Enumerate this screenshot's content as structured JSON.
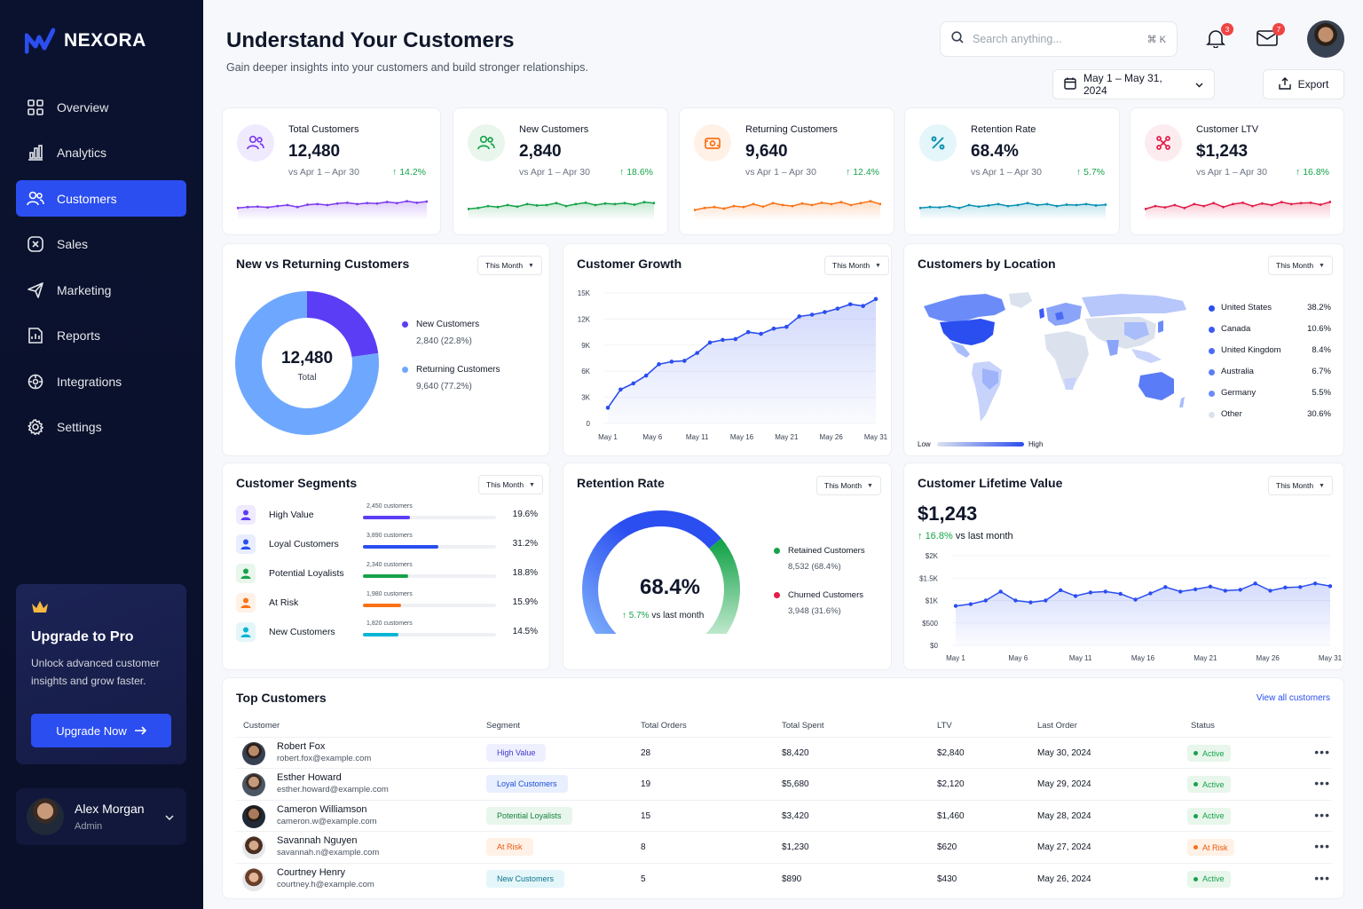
{
  "brand": {
    "name": "NEXORA"
  },
  "sidebar": {
    "items": [
      {
        "label": "Overview",
        "icon": "grid-icon"
      },
      {
        "label": "Analytics",
        "icon": "bar-chart-icon"
      },
      {
        "label": "Customers",
        "icon": "users-icon",
        "active": true
      },
      {
        "label": "Sales",
        "icon": "sales-icon"
      },
      {
        "label": "Marketing",
        "icon": "megaphone-icon"
      },
      {
        "label": "Reports",
        "icon": "report-icon"
      },
      {
        "label": "Integrations",
        "icon": "integrations-icon"
      },
      {
        "label": "Settings",
        "icon": "gear-icon"
      }
    ],
    "upgrade": {
      "title": "Upgrade to Pro",
      "text": "Unlock advanced customer insights and grow faster.",
      "button": "Upgrade Now"
    },
    "user": {
      "name": "Alex Morgan",
      "role": "Admin"
    }
  },
  "header": {
    "title": "Understand Your Customers",
    "subtitle": "Gain deeper insights into your customers and build stronger relationships.",
    "search_placeholder": "Search anything...",
    "search_shortcut": "⌘  K",
    "notifications_count": "3",
    "messages_count": "7",
    "date_range": "May 1 – May 31, 2024",
    "export_label": "Export"
  },
  "kpis": [
    {
      "label": "Total Customers",
      "value": "12,480",
      "cmp": "vs Apr 1 – Apr 30",
      "change": "14.2%",
      "color": "#7c3aed",
      "bg": "#efeafe",
      "icon": "users-icon",
      "spark": [
        0.35,
        0.4,
        0.42,
        0.38,
        0.45,
        0.5,
        0.4,
        0.52,
        0.55,
        0.5,
        0.58,
        0.62,
        0.55,
        0.6,
        0.58,
        0.66,
        0.6,
        0.7,
        0.62,
        0.68
      ]
    },
    {
      "label": "New Customers",
      "value": "2,840",
      "cmp": "vs Apr 1 – Apr 30",
      "change": "18.6%",
      "color": "#16a34a",
      "bg": "#e8f6ec",
      "icon": "users-icon",
      "spark": [
        0.3,
        0.35,
        0.45,
        0.4,
        0.5,
        0.42,
        0.55,
        0.48,
        0.5,
        0.6,
        0.45,
        0.55,
        0.62,
        0.5,
        0.58,
        0.55,
        0.6,
        0.52,
        0.65,
        0.6
      ]
    },
    {
      "label": "Returning Customers",
      "value": "9,640",
      "cmp": "vs Apr 1 – Apr 30",
      "change": "12.4%",
      "color": "#f97316",
      "bg": "#fff1e6",
      "icon": "wallet-icon",
      "spark": [
        0.25,
        0.35,
        0.4,
        0.32,
        0.45,
        0.4,
        0.55,
        0.42,
        0.6,
        0.5,
        0.45,
        0.58,
        0.5,
        0.62,
        0.55,
        0.65,
        0.5,
        0.6,
        0.7,
        0.55
      ]
    },
    {
      "label": "Retention Rate",
      "value": "68.4%",
      "cmp": "vs Apr 1 – Apr 30",
      "change": "5.7%",
      "color": "#0891b2",
      "bg": "#e4f6f9",
      "icon": "percent-icon",
      "spark": [
        0.35,
        0.4,
        0.38,
        0.45,
        0.35,
        0.5,
        0.42,
        0.48,
        0.55,
        0.45,
        0.5,
        0.6,
        0.5,
        0.55,
        0.45,
        0.52,
        0.5,
        0.55,
        0.48,
        0.52
      ]
    },
    {
      "label": "Customer LTV",
      "value": "$1,243",
      "cmp": "vs Apr 1 – Apr 30",
      "change": "16.8%",
      "color": "#e11d48",
      "bg": "#fdecef",
      "icon": "ltv-icon",
      "spark": [
        0.3,
        0.45,
        0.38,
        0.5,
        0.35,
        0.55,
        0.45,
        0.6,
        0.4,
        0.55,
        0.62,
        0.45,
        0.58,
        0.5,
        0.65,
        0.55,
        0.6,
        0.62,
        0.52,
        0.66
      ]
    }
  ],
  "new_vs_returning": {
    "title": "New vs Returning Customers",
    "dropdown": "This Month",
    "center_value": "12,480",
    "center_label": "Total",
    "slices": [
      {
        "name": "New Customers",
        "detail": "2,840 (22.8%)",
        "value": 22.8,
        "color": "#5b3df5"
      },
      {
        "name": "Returning Customers",
        "detail": "9,640 (77.2%)",
        "value": 77.2,
        "color": "#6ea8fe"
      }
    ]
  },
  "growth": {
    "title": "Customer Growth",
    "dropdown": "This Month",
    "y_ticks": [
      "15K",
      "12K",
      "9K",
      "6K",
      "3K",
      "0"
    ],
    "x_ticks": [
      "May 1",
      "May 6",
      "May 11",
      "May 16",
      "May 21",
      "May 26",
      "May 31"
    ]
  },
  "location": {
    "title": "Customers by Location",
    "dropdown": "This Month",
    "low": "Low",
    "high": "High",
    "rows": [
      {
        "name": "United States",
        "pct": "38.2%",
        "color": "#2b4ef0"
      },
      {
        "name": "Canada",
        "pct": "10.6%",
        "color": "#3b5bf5"
      },
      {
        "name": "United Kingdom",
        "pct": "8.4%",
        "color": "#4a6af6"
      },
      {
        "name": "Australia",
        "pct": "6.7%",
        "color": "#5b7cf7"
      },
      {
        "name": "Germany",
        "pct": "5.5%",
        "color": "#6b8cf8"
      },
      {
        "name": "Other",
        "pct": "30.6%",
        "color": "#dbe2ee"
      }
    ]
  },
  "segments": {
    "title": "Customer Segments",
    "dropdown": "This Month",
    "rows": [
      {
        "name": "High Value",
        "count": "2,450 customers",
        "pct": "19.6%",
        "value": 0.196,
        "color": "#5b3df5",
        "bg": "#efeafe"
      },
      {
        "name": "Loyal Customers",
        "count": "3,890 customers",
        "pct": "31.2%",
        "value": 0.312,
        "color": "#2b4ef0",
        "bg": "#e8edff"
      },
      {
        "name": "Potential Loyalists",
        "count": "2,340 customers",
        "pct": "18.8%",
        "value": 0.188,
        "color": "#16a34a",
        "bg": "#e8f6ec"
      },
      {
        "name": "At Risk",
        "count": "1,980 customers",
        "pct": "15.9%",
        "value": 0.159,
        "color": "#f97316",
        "bg": "#fff1e6"
      },
      {
        "name": "New Customers",
        "count": "1,820 customers",
        "pct": "14.5%",
        "value": 0.145,
        "color": "#06b6d4",
        "bg": "#e4f6f9"
      }
    ]
  },
  "retention": {
    "title": "Retention Rate",
    "dropdown": "This Month",
    "value": "68.4%",
    "rate": 0.684,
    "change": "5.7%",
    "change_suffix": "vs last month",
    "retained_label": "Retained Customers",
    "retained_detail": "8,532 (68.4%)",
    "churned_label": "Churned Customers",
    "churned_detail": "3,948 (31.6%)"
  },
  "ltv": {
    "title": "Customer Lifetime Value",
    "dropdown": "This Month",
    "value": "$1,243",
    "change": "16.8%",
    "change_suffix": "vs last month",
    "y_ticks": [
      "$2K",
      "$1.5K",
      "$1K",
      "$500",
      "$0"
    ],
    "x_ticks": [
      "May 1",
      "May 6",
      "May 11",
      "May 16",
      "May 21",
      "May 26",
      "May 31"
    ]
  },
  "top_customers": {
    "title": "Top Customers",
    "view_all": "View all customers",
    "columns": [
      "Customer",
      "Segment",
      "Total Orders",
      "Total Spent",
      "LTV",
      "Last Order",
      "Status"
    ],
    "rows": [
      {
        "name": "Robert Fox",
        "email": "robert.fox@example.com",
        "segment": "High Value",
        "seg_color": "#4338ca",
        "seg_bg": "#eef0ff",
        "orders": "28",
        "spent": "$8,420",
        "ltv": "$2,840",
        "last": "May 30, 2024",
        "status": "Active"
      },
      {
        "name": "Esther Howard",
        "email": "esther.howard@example.com",
        "segment": "Loyal Customers",
        "seg_color": "#1d4ed8",
        "seg_bg": "#e8efff",
        "orders": "19",
        "spent": "$5,680",
        "ltv": "$2,120",
        "last": "May 29, 2024",
        "status": "Active"
      },
      {
        "name": "Cameron Williamson",
        "email": "cameron.w@example.com",
        "segment": "Potential Loyalists",
        "seg_color": "#15803d",
        "seg_bg": "#e8f6ec",
        "orders": "15",
        "spent": "$3,420",
        "ltv": "$1,460",
        "last": "May 28, 2024",
        "status": "Active"
      },
      {
        "name": "Savannah Nguyen",
        "email": "savannah.n@example.com",
        "segment": "At Risk",
        "seg_color": "#ea580c",
        "seg_bg": "#fff1e6",
        "orders": "8",
        "spent": "$1,230",
        "ltv": "$620",
        "last": "May 27, 2024",
        "status": "At Risk"
      },
      {
        "name": "Courtney Henry",
        "email": "courtney.h@example.com",
        "segment": "New Customers",
        "seg_color": "#0e7490",
        "seg_bg": "#e4f6f9",
        "orders": "5",
        "spent": "$890",
        "ltv": "$430",
        "last": "May 26, 2024",
        "status": "Active"
      }
    ]
  },
  "chart_data": [
    {
      "type": "pie",
      "title": "New vs Returning Customers",
      "categories": [
        "New Customers",
        "Returning Customers"
      ],
      "values": [
        22.8,
        77.2
      ]
    },
    {
      "type": "line",
      "title": "Customer Growth",
      "x": [
        "May 1",
        "May 3",
        "May 4",
        "May 5",
        "May 6",
        "May 7",
        "May 8",
        "May 9",
        "May 11",
        "May 13",
        "May 15",
        "May 16",
        "May 17",
        "May 19",
        "May 20",
        "May 21",
        "May 22",
        "May 24",
        "May 26",
        "May 27",
        "May 29",
        "May 31"
      ],
      "y": [
        1800,
        3900,
        4600,
        5500,
        6800,
        7100,
        7200,
        8100,
        9300,
        9600,
        9700,
        10500,
        10300,
        10900,
        11100,
        12300,
        12500,
        12800,
        13200,
        13700,
        13500,
        14300
      ],
      "ylim": [
        0,
        15000
      ]
    },
    {
      "type": "line",
      "title": "Customer Lifetime Value",
      "x": [
        "May 1",
        "May 2",
        "May 3",
        "May 4",
        "May 6",
        "May 7",
        "May 8",
        "May 9",
        "May 10",
        "May 11",
        "May 12",
        "May 14",
        "May 15",
        "May 16",
        "May 17",
        "May 18",
        "May 19",
        "May 21",
        "May 22",
        "May 23",
        "May 24",
        "May 26",
        "May 27",
        "May 28",
        "May 29",
        "May 31"
      ],
      "y": [
        880,
        920,
        1000,
        1200,
        1000,
        960,
        1000,
        1230,
        1100,
        1180,
        1200,
        1150,
        1020,
        1160,
        1300,
        1200,
        1250,
        1310,
        1220,
        1240,
        1380,
        1220,
        1290,
        1300,
        1380,
        1320
      ],
      "ylim": [
        0,
        2000
      ]
    }
  ]
}
